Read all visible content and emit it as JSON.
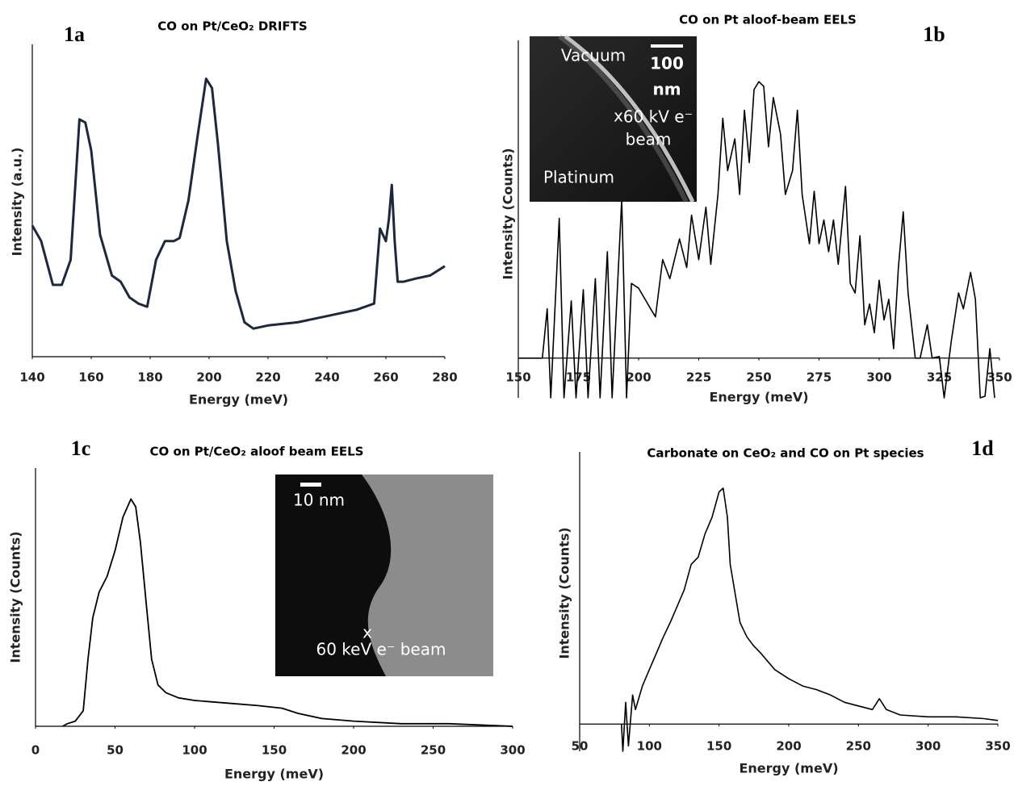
{
  "chart_data": [
    {
      "type": "line",
      "panel_label": "1a",
      "title": "CO on Pt/CeO₂ DRIFTS",
      "x_label": "Energy (meV)",
      "y_label": "Intensity (a.u.)",
      "color": "#1c2740",
      "x": [
        140,
        143,
        147,
        150,
        153,
        156,
        158,
        160,
        163,
        167,
        170,
        173,
        176,
        179,
        182,
        185,
        188,
        190,
        193,
        196,
        199,
        201,
        203,
        206,
        209,
        212,
        215,
        220,
        230,
        240,
        250,
        256,
        258,
        260,
        261,
        262,
        263,
        264,
        266,
        270,
        275,
        280
      ],
      "values": [
        42,
        37,
        23,
        23,
        31,
        76,
        75,
        66,
        39,
        26,
        24,
        19,
        17,
        16,
        31,
        37,
        37,
        38,
        50,
        70,
        89,
        86,
        68,
        37,
        21,
        11,
        9,
        10,
        11,
        13,
        15,
        17,
        41,
        37,
        44,
        55,
        37,
        24,
        24,
        25,
        26,
        29
      ],
      "xlim": [
        140,
        280
      ],
      "xticks": [
        140,
        160,
        180,
        200,
        220,
        240,
        260,
        280
      ],
      "ylim": [
        0,
        100
      ]
    },
    {
      "type": "line",
      "panel_label": "1b",
      "title": "CO on Pt aloof-beam EELS",
      "x_label": "Energy (meV)",
      "y_label": "Intensity (Counts)",
      "color": "#000000",
      "x": [
        150,
        160,
        162,
        163.5,
        167,
        169,
        172,
        174,
        177,
        179,
        182,
        184,
        187,
        189,
        193,
        195,
        197,
        200,
        205,
        207,
        210,
        213,
        217,
        220,
        222,
        225,
        228,
        230,
        233,
        235,
        237,
        240,
        242,
        244,
        246,
        248,
        250,
        252,
        254,
        256,
        259,
        261,
        264,
        266,
        268,
        271,
        273,
        275,
        277,
        279,
        281,
        283,
        286,
        288,
        290,
        292,
        294,
        296,
        298,
        300,
        302,
        304,
        306,
        308,
        310,
        312,
        315,
        317,
        320,
        322,
        325,
        327,
        330,
        333,
        335,
        338,
        340,
        342,
        344,
        346,
        348
      ],
      "values": [
        0,
        0,
        31,
        -25,
        88,
        -25,
        36,
        -25,
        43,
        -25,
        50,
        -25,
        67,
        -25,
        100,
        -25,
        47,
        44,
        31,
        26,
        62,
        50,
        75,
        57,
        90,
        62,
        95,
        59,
        103,
        151,
        118,
        138,
        103,
        156,
        123,
        169,
        174,
        171,
        133,
        164,
        141,
        103,
        118,
        156,
        103,
        72,
        105,
        72,
        87,
        67,
        87,
        59,
        108,
        47,
        41,
        77,
        21,
        34,
        16,
        49,
        24,
        37,
        6,
        57,
        92,
        41,
        0,
        0,
        21,
        0,
        1,
        -25,
        11,
        41,
        31,
        54,
        37,
        -25,
        -24,
        6,
        -25
      ],
      "xlim": [
        150,
        350
      ],
      "xticks": [
        150,
        175,
        200,
        225,
        250,
        275,
        300,
        325,
        350
      ],
      "ylim": [
        -25,
        200
      ],
      "inset_labels": [
        "Vacuum",
        "100",
        "nm",
        "x",
        "60 kV e⁻",
        "beam",
        "Platinum"
      ]
    },
    {
      "type": "line",
      "panel_label": "1c",
      "title": "CO on Pt/CeO₂ aloof beam EELS",
      "x_label": "Energy (meV)",
      "y_label": "Intensity (Counts)",
      "color": "#000000",
      "x": [
        17,
        20,
        25,
        30,
        33,
        36,
        40,
        45,
        50,
        55,
        60,
        63,
        66,
        70,
        73,
        77,
        82,
        90,
        100,
        120,
        140,
        155,
        165,
        180,
        200,
        230,
        260,
        300
      ],
      "values": [
        0,
        1,
        2,
        6,
        26,
        42,
        52,
        58,
        68,
        81,
        88,
        85,
        71,
        45,
        26,
        16,
        13,
        11,
        10,
        9,
        8,
        7,
        5,
        3,
        2,
        1,
        1,
        0
      ],
      "xlim": [
        0,
        300
      ],
      "xticks": [
        0,
        50,
        100,
        150,
        200,
        250,
        300
      ],
      "ylim": [
        0,
        100
      ],
      "inset_labels": [
        "10 nm",
        "x",
        "60 keV e⁻ beam"
      ]
    },
    {
      "type": "line",
      "panel_label": "1d",
      "title": "Carbonate on CeO₂ and CO on Pt species",
      "x_label": "Energy (meV)",
      "y_label": "Intensity (Counts)",
      "color": "#000000",
      "x": [
        80,
        81,
        83,
        85,
        88,
        90,
        95,
        100,
        105,
        110,
        115,
        120,
        125,
        130,
        135,
        140,
        145,
        150,
        153,
        156,
        158,
        160,
        165,
        170,
        175,
        180,
        190,
        200,
        210,
        220,
        230,
        240,
        250,
        260,
        265,
        270,
        280,
        300,
        320,
        340,
        350
      ],
      "values": [
        0,
        -15,
        12,
        -12,
        16,
        8,
        21,
        30,
        39,
        48,
        56,
        65,
        74,
        88,
        92,
        105,
        114,
        128,
        130,
        114,
        88,
        79,
        56,
        48,
        43,
        39,
        30,
        25,
        21,
        19,
        16,
        12,
        10,
        8,
        14,
        8,
        5,
        4,
        4,
        3,
        2
      ],
      "xlim": [
        50,
        350
      ],
      "xticks": [
        50,
        100,
        150,
        200,
        250,
        300,
        350
      ],
      "ylim": [
        -15,
        150
      ]
    }
  ]
}
